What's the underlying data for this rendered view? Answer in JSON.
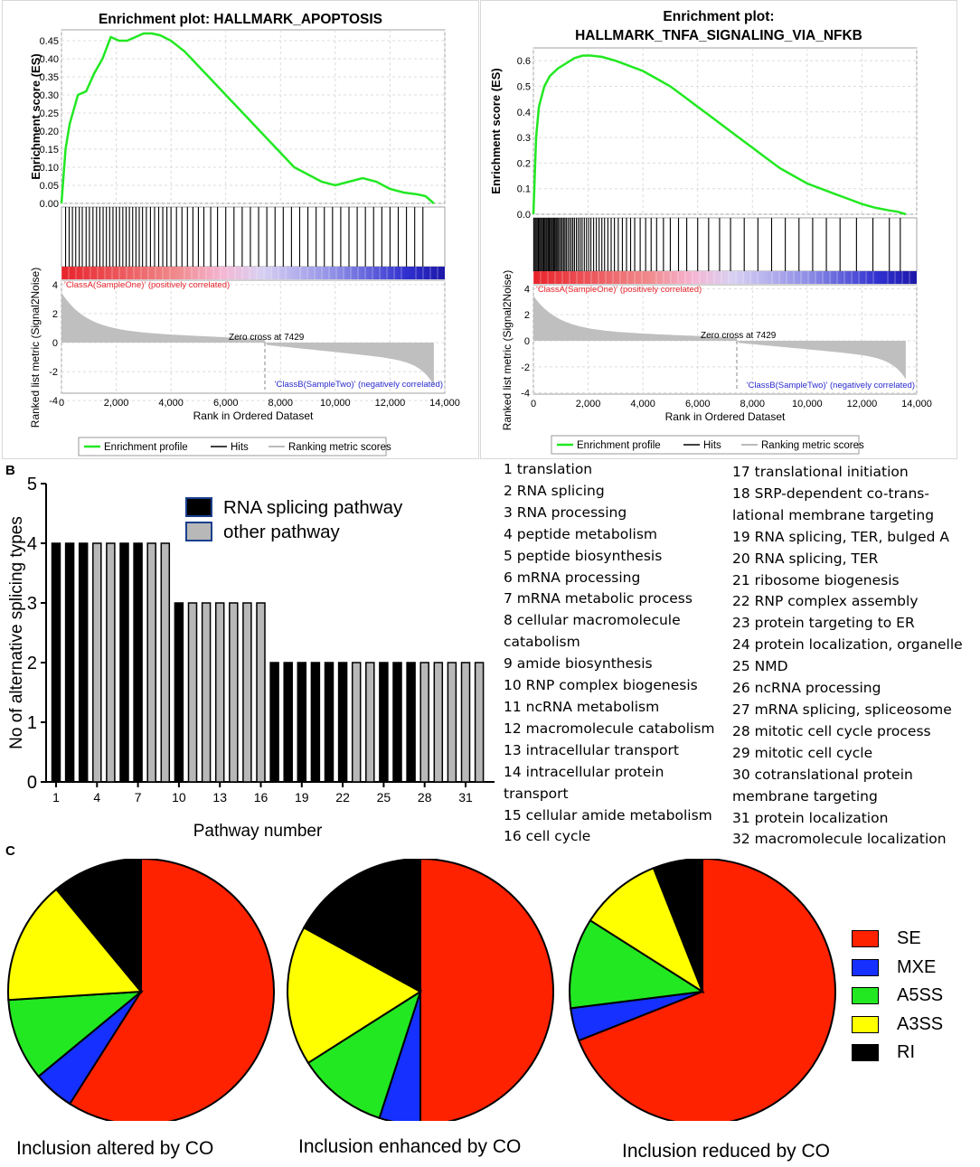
{
  "panels": {
    "a": "A",
    "b": "B",
    "c": "C"
  },
  "colors": {
    "es_line": "#22e822",
    "positive": "#e8232a",
    "negative": "#2a2acf",
    "metric_fill": "#bfbfbf",
    "se": "#ff2200",
    "mxe": "#1530ff",
    "a5ss": "#22e822",
    "a3ss": "#ffff00",
    "ri": "#000000",
    "splicing_bar": "#000000",
    "other_bar": "#b8b8b8"
  },
  "chart_data": [
    {
      "type": "line",
      "panel": "A-left",
      "title": "Enrichment plot: HALLMARK_APOPTOSIS",
      "ylabel": "Enrichment score (ES)",
      "ylim": [
        0,
        0.48
      ],
      "yticks": [
        0.0,
        0.05,
        0.1,
        0.15,
        0.2,
        0.25,
        0.3,
        0.35,
        0.4,
        0.45
      ],
      "ytick_labels": [
        "0.00",
        "0.05",
        "0.10",
        "0.15",
        "0.20",
        "0.25",
        "0.30",
        "0.35",
        "0.40",
        "0.45"
      ],
      "es_x": [
        0,
        150,
        300,
        600,
        900,
        1200,
        1500,
        1800,
        2100,
        2400,
        2700,
        3000,
        3300,
        3600,
        4000,
        4500,
        5000,
        5500,
        6000,
        6500,
        7000,
        7500,
        8000,
        8500,
        9000,
        9500,
        10000,
        10500,
        11000,
        11500,
        12000,
        12500,
        13000,
        13300,
        13600
      ],
      "es_y": [
        0.0,
        0.15,
        0.22,
        0.3,
        0.31,
        0.36,
        0.4,
        0.46,
        0.45,
        0.45,
        0.46,
        0.47,
        0.47,
        0.465,
        0.45,
        0.42,
        0.38,
        0.34,
        0.3,
        0.26,
        0.22,
        0.18,
        0.14,
        0.1,
        0.08,
        0.06,
        0.05,
        0.06,
        0.07,
        0.06,
        0.04,
        0.03,
        0.025,
        0.02,
        0.0
      ],
      "hits": [
        150,
        280,
        400,
        520,
        650,
        760,
        900,
        1020,
        1150,
        1280,
        1400,
        1520,
        1640,
        1760,
        1880,
        2000,
        2120,
        2240,
        2360,
        2480,
        2600,
        2720,
        2840,
        2960,
        3100,
        3250,
        3400,
        3550,
        3700,
        3850,
        4000,
        4200,
        4400,
        4600,
        4800,
        5000,
        5200,
        5450,
        5700,
        6000,
        6300,
        6600,
        6900,
        7200,
        7500,
        7800,
        8100,
        8400,
        8700,
        9000,
        9300,
        9600,
        9900,
        10200,
        10500,
        10800,
        11100,
        11400,
        11700,
        12000,
        12300,
        12600,
        12900,
        13200
      ],
      "metric_ylabel": "Ranked list metric (Signal2Noise)",
      "metric_ylim": [
        -4.3,
        4.3
      ],
      "metric_yticks": [
        4,
        2,
        0,
        -2,
        -4
      ],
      "metric_ytick_labels": [
        "4",
        "2",
        "0",
        "-2",
        "-4"
      ],
      "positive_label": "'ClassA(SampleOne)' (positively correlated)",
      "negative_label": "'ClassB(SampleTwo)' (negatively correlated)",
      "zero_cross_label": "Zero cross at 7429",
      "zero_cross": 7429,
      "xlabel": "Rank in Ordered Dataset",
      "xlim": [
        0,
        14000
      ],
      "xticks": [
        0,
        2000,
        4000,
        6000,
        8000,
        10000,
        12000,
        14000
      ],
      "xtick_labels": [
        "0",
        "2,000",
        "4,000",
        "6,000",
        "8,000",
        "10,000",
        "12,000",
        "14,000"
      ],
      "legend": [
        "Enrichment profile",
        "Hits",
        "Ranking metric scores"
      ]
    },
    {
      "type": "line",
      "panel": "A-right",
      "title_line1": "Enrichment plot:",
      "title_line2": "HALLMARK_TNFA_SIGNALING_VIA_NFKB",
      "ylabel": "Enrichment score (ES)",
      "ylim": [
        0,
        0.65
      ],
      "yticks": [
        0.0,
        0.1,
        0.2,
        0.3,
        0.4,
        0.5,
        0.6
      ],
      "ytick_labels": [
        "0.0",
        "0.1",
        "0.2",
        "0.3",
        "0.4",
        "0.5",
        "0.6"
      ],
      "es_x": [
        0,
        100,
        200,
        400,
        600,
        900,
        1200,
        1500,
        1800,
        2100,
        2500,
        3000,
        3500,
        4000,
        4500,
        5000,
        5500,
        6000,
        6500,
        7000,
        7500,
        8000,
        8500,
        9000,
        9500,
        10000,
        10500,
        11000,
        11500,
        12000,
        12500,
        13000,
        13300,
        13600
      ],
      "es_y": [
        0.0,
        0.3,
        0.42,
        0.5,
        0.54,
        0.57,
        0.59,
        0.61,
        0.62,
        0.62,
        0.615,
        0.6,
        0.58,
        0.56,
        0.53,
        0.5,
        0.46,
        0.42,
        0.38,
        0.34,
        0.3,
        0.26,
        0.22,
        0.18,
        0.15,
        0.12,
        0.1,
        0.08,
        0.06,
        0.04,
        0.025,
        0.015,
        0.01,
        0.0
      ],
      "hits": [
        20,
        60,
        100,
        140,
        180,
        220,
        260,
        300,
        340,
        380,
        420,
        460,
        500,
        540,
        580,
        620,
        660,
        700,
        740,
        780,
        820,
        860,
        900,
        950,
        1000,
        1050,
        1100,
        1150,
        1200,
        1260,
        1320,
        1380,
        1440,
        1500,
        1570,
        1640,
        1710,
        1780,
        1860,
        1940,
        2020,
        2100,
        2200,
        2300,
        2400,
        2500,
        2600,
        2720,
        2840,
        2960,
        3100,
        3250,
        3400,
        3550,
        3700,
        3900,
        4100,
        4300,
        4500,
        4750,
        5000,
        5300,
        5600,
        6000,
        6400,
        6800,
        7200,
        7700,
        8200,
        8700,
        9200,
        9700,
        10200,
        10700,
        11200,
        11800,
        12400,
        13000,
        13400
      ],
      "metric_ylabel": "Ranked list metric (Signal2Noise)",
      "metric_ylim": [
        -4.3,
        4.3
      ],
      "metric_yticks": [
        4,
        2,
        0,
        -2,
        -4
      ],
      "metric_ytick_labels": [
        "4",
        "2",
        "0",
        "-2",
        "-4"
      ],
      "positive_label": "'ClassA(SampleOne)' (positively correlated)",
      "negative_label": "'ClassB(SampleTwo)' (negatively correlated)",
      "zero_cross_label": "Zero cross at 7429",
      "zero_cross": 7429,
      "xlabel": "Rank in Ordered Dataset",
      "xlim": [
        0,
        14000
      ],
      "xticks": [
        0,
        2000,
        4000,
        6000,
        8000,
        10000,
        12000,
        14000
      ],
      "xtick_labels": [
        "0",
        "2,000",
        "4,000",
        "6,000",
        "8,000",
        "10,000",
        "12,000",
        "14,000"
      ],
      "legend": [
        "Enrichment profile",
        "Hits",
        "Ranking metric scores"
      ]
    },
    {
      "type": "bar",
      "panel": "B",
      "categories": [
        1,
        2,
        3,
        4,
        5,
        6,
        7,
        8,
        9,
        10,
        11,
        12,
        13,
        14,
        15,
        16,
        17,
        18,
        19,
        20,
        21,
        22,
        23,
        24,
        25,
        26,
        27,
        28,
        29,
        30,
        31,
        32
      ],
      "values": [
        4,
        4,
        4,
        4,
        4,
        4,
        4,
        4,
        4,
        3,
        3,
        3,
        3,
        3,
        3,
        3,
        2,
        2,
        2,
        2,
        2,
        2,
        2,
        2,
        2,
        2,
        2,
        2,
        2,
        2,
        2,
        2
      ],
      "is_splicing": [
        true,
        true,
        true,
        false,
        false,
        true,
        true,
        false,
        false,
        true,
        false,
        false,
        false,
        false,
        false,
        false,
        true,
        true,
        true,
        true,
        true,
        true,
        false,
        false,
        true,
        true,
        true,
        false,
        false,
        false,
        false,
        false
      ],
      "ylabel": "No of alternative splicing types",
      "xlabel": "Pathway number",
      "ylim": [
        0,
        5
      ],
      "yticks": [
        0,
        1,
        2,
        3,
        4,
        5
      ],
      "ytick_labels": [
        "0",
        "1",
        "2",
        "3",
        "4",
        "5"
      ],
      "xtick_values": [
        1,
        4,
        7,
        10,
        13,
        16,
        19,
        22,
        25,
        28,
        31
      ],
      "xtick_labels": [
        "1",
        "4",
        "7",
        "10",
        "13",
        "16",
        "19",
        "22",
        "25",
        "28",
        "31"
      ],
      "legend": [
        "RNA splicing pathway",
        "other pathway"
      ]
    },
    {
      "type": "pie",
      "panel": "C-1",
      "label": "Inclusion altered by CO",
      "categories": [
        "SE",
        "MXE",
        "A5SS",
        "A3SS",
        "RI"
      ],
      "values": [
        59,
        5,
        10,
        15,
        11
      ]
    },
    {
      "type": "pie",
      "panel": "C-2",
      "label": "Inclusion enhanced by CO",
      "categories": [
        "SE",
        "MXE",
        "A5SS",
        "A3SS",
        "RI"
      ],
      "values": [
        50,
        5,
        11,
        17,
        17
      ]
    },
    {
      "type": "pie",
      "panel": "C-3",
      "label": "Inclusion reduced by CO",
      "categories": [
        "SE",
        "MXE",
        "A5SS",
        "A3SS",
        "RI"
      ],
      "values": [
        69,
        4,
        11,
        10,
        6
      ]
    }
  ],
  "pathways_col1": [
    "1   translation",
    "2   RNA splicing",
    "3   RNA processing",
    "4   peptide metabolism",
    "5   peptide biosynthesis",
    "6   mRNA processing",
    "7   mRNA metabolic process",
    "8   cellular macromolecule",
    "catabolism",
    "9   amide biosynthesis",
    "10 RNP complex biogenesis",
    "11 ncRNA metabolism",
    "12 macromolecule catabolism",
    "13 intracellular transport",
    "14 intracellular protein",
    "transport",
    "15 cellular amide metabolism",
    "16 cell cycle"
  ],
  "pathways_col2": [
    "17 translational initiation",
    "18 SRP-dependent co-trans-",
    "lational membrane targeting",
    "19 RNA splicing, TER, bulged A",
    "20 RNA splicing, TER",
    "21 ribosome biogenesis",
    "22 RNP complex assembly",
    "23 protein targeting to ER",
    "24 protein localization, organelle",
    "25 NMD",
    "26 ncRNA processing",
    "27 mRNA splicing, spliceosome",
    "28 mitotic cell cycle process",
    "29 mitotic cell cycle",
    "30 cotranslational protein",
    "membrane targeting",
    "31 protein localization",
    "32 macromolecule localization"
  ],
  "pie_legend": [
    "SE",
    "MXE",
    "A5SS",
    "A3SS",
    "RI"
  ]
}
